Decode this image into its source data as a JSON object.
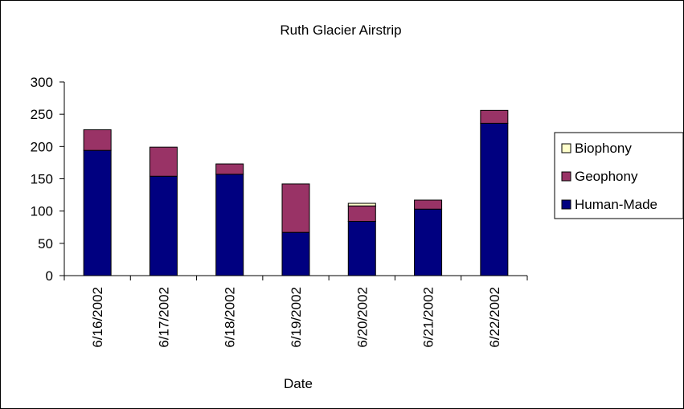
{
  "chart_data": {
    "type": "bar",
    "stacked": true,
    "title": "Ruth Glacier Airstrip",
    "xlabel": "Date",
    "ylabel": "",
    "ylim": [
      0,
      300
    ],
    "yticks": [
      0,
      50,
      100,
      150,
      200,
      250,
      300
    ],
    "categories": [
      "6/16/2002",
      "6/17/2002",
      "6/18/2002",
      "6/19/2002",
      "6/20/2002",
      "6/21/2002",
      "6/22/2002"
    ],
    "series": [
      {
        "name": "Human-Made",
        "color": "#000080",
        "values": [
          194,
          154,
          157,
          67,
          84,
          103,
          236
        ]
      },
      {
        "name": "Geophony",
        "color": "#993366",
        "values": [
          32,
          45,
          16,
          75,
          24,
          14,
          20
        ]
      },
      {
        "name": "Biophony",
        "color": "#FFFFCC",
        "values": [
          0,
          0,
          0,
          0,
          4,
          0,
          0
        ]
      }
    ],
    "legend_order": [
      "Biophony",
      "Geophony",
      "Human-Made"
    ],
    "legend_position": "right",
    "grid": false
  }
}
